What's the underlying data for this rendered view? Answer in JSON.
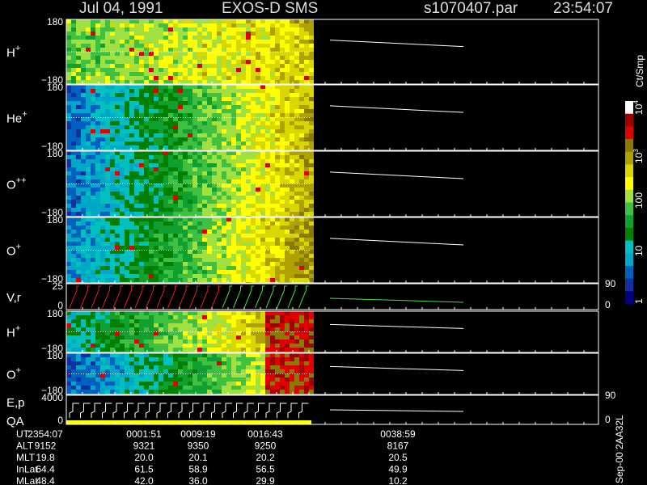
{
  "header": {
    "date": "Jul 04, 1991",
    "instrument": "EXOS-D SMS",
    "file": "s1070407.par",
    "time": "23:54:07"
  },
  "panels": [
    {
      "label": "H",
      "sup": "+",
      "ticks": [
        "180",
        "−180"
      ]
    },
    {
      "label": "He",
      "sup": "+",
      "ticks": [
        "180",
        "−180"
      ]
    },
    {
      "label": "O",
      "sup": "++",
      "ticks": [
        "180",
        "−180"
      ]
    },
    {
      "label": "O",
      "sup": "+",
      "ticks": [
        "180",
        "−180"
      ]
    },
    {
      "label": "V,r",
      "ticks": [
        "25",
        "0"
      ],
      "right_ticks": [
        "90",
        "0"
      ]
    },
    {
      "label": "H",
      "sup": "+",
      "ticks": [
        "180",
        "−180"
      ]
    },
    {
      "label": "O",
      "sup": "+",
      "ticks": [
        "180",
        "−180"
      ]
    },
    {
      "label": "E,p",
      "label2": "QA",
      "ticks": [
        "4000",
        "0"
      ],
      "right_ticks": [
        "90",
        "0"
      ]
    }
  ],
  "colorbar": {
    "label": "Ct/Smp",
    "ticks": [
      {
        "base": "10",
        "exp": "4"
      },
      {
        "base": "10",
        "exp": "3"
      },
      {
        "base": "100"
      },
      {
        "base": "10"
      },
      {
        "base": "1"
      }
    ]
  },
  "footer": {
    "rows": [
      {
        "name": "UT",
        "cells": [
          "2354:07",
          "0001:51",
          "0009:19",
          "0016:43",
          "0038:59"
        ]
      },
      {
        "name": "ALT",
        "cells": [
          "9152",
          "9321",
          "9350",
          "9250",
          "8167"
        ]
      },
      {
        "name": "MLT",
        "cells": [
          "19.8",
          "20.0",
          "20.1",
          "20.2",
          "20.5"
        ]
      },
      {
        "name": "InLat",
        "cells": [
          "64.4",
          "61.5",
          "58.9",
          "56.5",
          "49.9"
        ]
      },
      {
        "name": "MLat",
        "cells": [
          "48.4",
          "42.0",
          "36.0",
          "29.9",
          "10.2"
        ]
      }
    ]
  },
  "side_note": "Sep-00 2AA32L"
}
